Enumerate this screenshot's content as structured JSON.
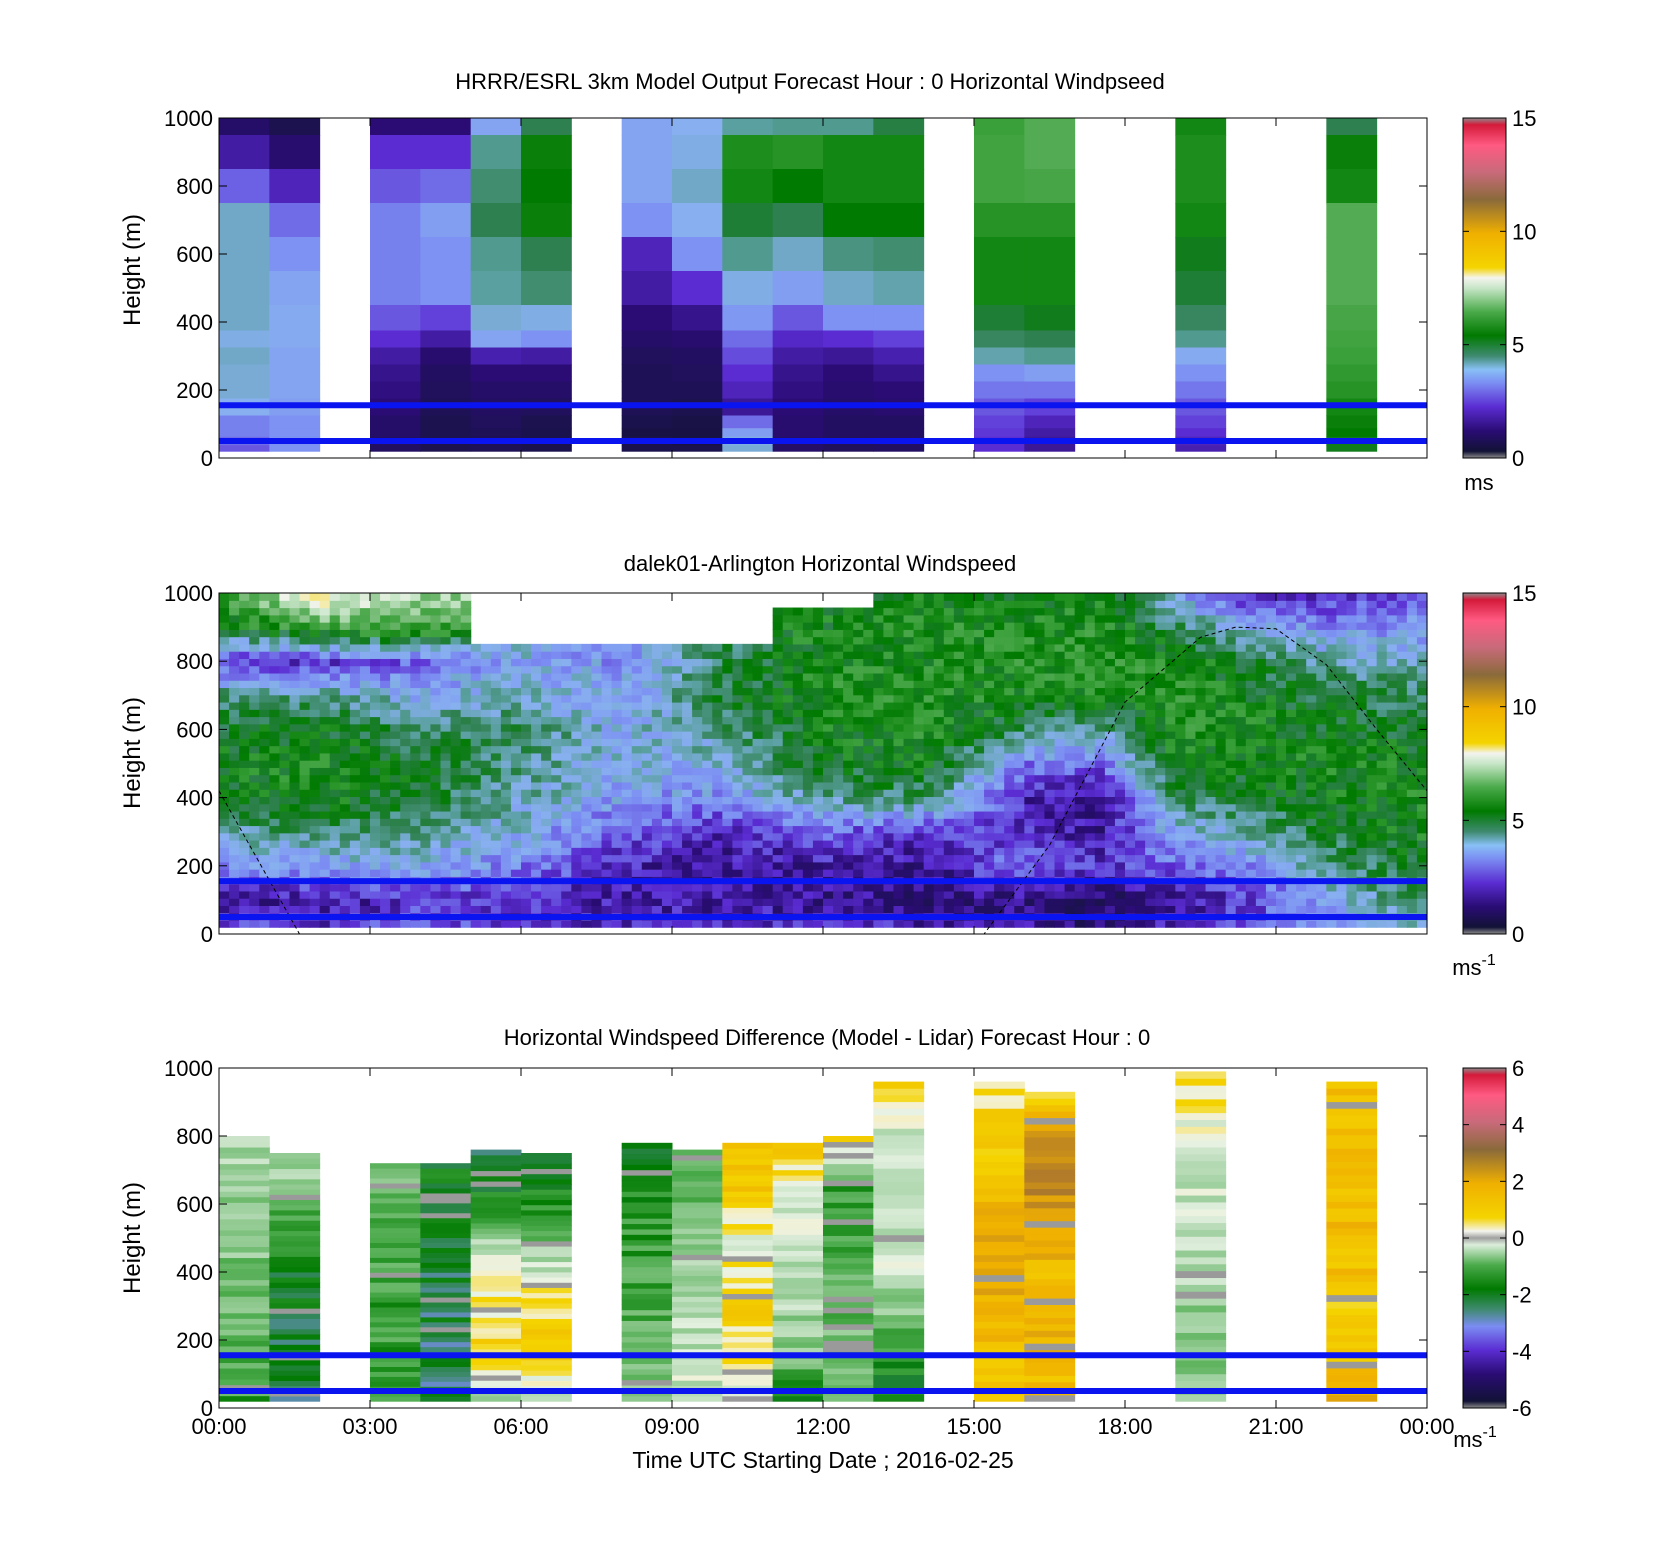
{
  "figure": {
    "xlabel": "Time UTC  Starting Date ; 2016-02-25",
    "x_ticks": [
      "00:00",
      "03:00",
      "06:00",
      "09:00",
      "12:00",
      "15:00",
      "18:00",
      "21:00",
      "00:00"
    ]
  },
  "chart_data": [
    {
      "type": "heatmap",
      "title": "HRRR/ESRL 3km Model Output   Forecast Hour : 0 Horizontal Windpseed",
      "ylabel": "Height (m)",
      "y_ticks": [
        "0",
        "200",
        "400",
        "600",
        "800",
        "1000"
      ],
      "xlim_hours": [
        0,
        24
      ],
      "ylim": [
        0,
        1000
      ],
      "colorbar": {
        "ticks": [
          "0",
          "5",
          "10",
          "15"
        ],
        "unit": "ms",
        "range": [
          0,
          15
        ]
      },
      "reference_lines_m": [
        50,
        155
      ],
      "levels_m": [
        1000,
        900,
        800,
        700,
        600,
        500,
        400,
        350,
        300,
        250,
        200,
        150,
        100,
        75,
        50,
        25
      ],
      "columns": [
        {
          "t": 0.5,
          "speeds": [
            1.0,
            1.6,
            2.5,
            3.8,
            3.8,
            3.8,
            3.8,
            3.6,
            3.8,
            3.7,
            3.7,
            3.5,
            2.8,
            2.8,
            2.6,
            2.4
          ]
        },
        {
          "t": 1.5,
          "speeds": [
            0.6,
            1.1,
            1.8,
            2.6,
            3.0,
            3.3,
            3.4,
            3.4,
            3.3,
            3.3,
            3.3,
            3.2,
            3.0,
            3.0,
            3.0,
            3.0
          ]
        },
        {
          "t": 2.5,
          "speeds": null
        },
        {
          "t": 3.5,
          "speeds": [
            1.2,
            2.0,
            2.4,
            2.8,
            2.8,
            2.8,
            2.4,
            2.0,
            1.6,
            1.4,
            1.3,
            1.2,
            1.0,
            1.0,
            0.9,
            0.9
          ]
        },
        {
          "t": 4.5,
          "speeds": [
            1.2,
            2.0,
            2.6,
            3.2,
            3.0,
            3.0,
            2.2,
            1.6,
            1.1,
            0.9,
            0.8,
            0.7,
            0.6,
            0.6,
            0.6,
            0.6
          ]
        },
        {
          "t": 5.5,
          "speeds": [
            3.3,
            4.2,
            4.4,
            4.6,
            4.2,
            4.1,
            3.7,
            3.3,
            1.7,
            1.2,
            1.0,
            0.9,
            0.8,
            0.7,
            0.7,
            0.7
          ]
        },
        {
          "t": 6.5,
          "speeds": [
            4.6,
            5.3,
            5.2,
            5.3,
            4.6,
            4.4,
            3.6,
            3.0,
            1.6,
            1.2,
            1.0,
            0.8,
            0.6,
            0.5,
            0.5,
            0.5
          ]
        },
        {
          "t": 7.5,
          "speeds": null
        },
        {
          "t": 8.5,
          "speeds": [
            3.3,
            3.3,
            3.3,
            3.0,
            1.8,
            1.6,
            1.2,
            1.0,
            0.8,
            0.7,
            0.7,
            0.7,
            0.5,
            0.3,
            0.5,
            0.5
          ]
        },
        {
          "t": 9.5,
          "speeds": [
            3.5,
            3.6,
            3.8,
            3.5,
            3.0,
            2.0,
            1.4,
            1.1,
            0.9,
            0.8,
            0.7,
            0.6,
            0.4,
            0.3,
            0.3,
            0.5
          ]
        },
        {
          "t": 10.5,
          "speeds": [
            4.1,
            5.5,
            5.4,
            4.8,
            4.2,
            3.6,
            3.1,
            2.6,
            2.3,
            2.0,
            1.8,
            1.5,
            2.6,
            3.2,
            3.6,
            3.7
          ]
        },
        {
          "t": 11.5,
          "speeds": [
            4.2,
            5.6,
            5.2,
            4.6,
            3.8,
            3.2,
            2.4,
            1.9,
            1.6,
            1.4,
            1.3,
            1.2,
            1.1,
            1.1,
            1.0,
            1.0
          ]
        },
        {
          "t": 12.5,
          "speeds": [
            4.2,
            5.4,
            5.4,
            5.2,
            4.3,
            3.8,
            3.0,
            2.0,
            1.5,
            1.2,
            1.1,
            1.0,
            0.9,
            0.9,
            0.8,
            0.8
          ]
        },
        {
          "t": 13.5,
          "speeds": [
            4.7,
            5.4,
            5.4,
            5.2,
            4.4,
            4.0,
            3.0,
            2.2,
            1.7,
            1.4,
            1.2,
            1.1,
            0.9,
            0.9,
            0.9,
            0.9
          ]
        },
        {
          "t": 14.5,
          "speeds": null
        },
        {
          "t": 15.5,
          "speeds": [
            5.8,
            5.9,
            5.9,
            5.6,
            5.4,
            5.4,
            4.8,
            4.5,
            4.0,
            3.0,
            2.7,
            2.4,
            2.2,
            2.1,
            2.0,
            2.0
          ]
        },
        {
          "t": 16.5,
          "speeds": [
            6.2,
            6.2,
            6.0,
            5.6,
            5.4,
            5.4,
            5.0,
            4.6,
            4.2,
            3.2,
            2.7,
            2.2,
            1.8,
            1.6,
            1.5,
            1.5
          ]
        },
        {
          "t": 17.5,
          "speeds": null
        },
        {
          "t": 18.5,
          "speeds": null
        },
        {
          "t": 19.5,
          "speeds": [
            5.4,
            5.5,
            5.5,
            5.4,
            5.0,
            4.8,
            4.5,
            4.2,
            3.4,
            3.0,
            2.7,
            2.4,
            2.2,
            2.0,
            1.8,
            1.7
          ]
        },
        {
          "t": 20.5,
          "speeds": null
        },
        {
          "t": 21.5,
          "speeds": null
        },
        {
          "t": 22.5,
          "speeds": [
            4.6,
            5.3,
            5.4,
            6.2,
            6.2,
            6.2,
            6.0,
            5.9,
            5.8,
            5.7,
            5.6,
            5.4,
            5.3,
            5.2,
            5.0,
            5.0
          ]
        },
        {
          "t": 23.5,
          "speeds": null
        }
      ]
    },
    {
      "type": "heatmap",
      "title": "dalek01-Arlington  Horizontal Windspeed",
      "ylabel": "Height (m)",
      "y_ticks": [
        "0",
        "200",
        "400",
        "600",
        "800",
        "1000"
      ],
      "xlim_hours": [
        0,
        24
      ],
      "ylim": [
        0,
        1000
      ],
      "colorbar": {
        "ticks": [
          "0",
          "5",
          "10",
          "15"
        ],
        "unit": "ms",
        "unit_sup": "-1",
        "range": [
          0,
          15
        ]
      },
      "reference_lines_m": [
        50,
        155
      ],
      "overlay_curve": "dashed black line (top of boundary layer)",
      "field_keyframes": {
        "levels_m": [
          20,
          100,
          200,
          300,
          400,
          500,
          600,
          700,
          800,
          900,
          1000
        ],
        "columns": [
          {
            "t": 0.0,
            "speeds": [
              2.5,
              1.5,
              3.0,
              4.0,
              5.0,
              5.2,
              5.0,
              4.5,
              2.0,
              5.0,
              6.0
            ]
          },
          {
            "t": 2.0,
            "speeds": [
              2.0,
              1.6,
              3.2,
              4.5,
              5.3,
              5.4,
              5.1,
              4.2,
              2.0,
              6.0,
              8.0
            ]
          },
          {
            "t": 4.0,
            "speeds": [
              2.5,
              2.0,
              3.5,
              4.2,
              4.8,
              5.0,
              4.5,
              3.5,
              2.5,
              6.0,
              7.0
            ]
          },
          {
            "t": 6.0,
            "speeds": [
              2.0,
              2.0,
              2.8,
              3.5,
              4.0,
              4.2,
              4.5,
              3.8,
              3.5,
              null,
              null
            ]
          },
          {
            "t": 8.0,
            "speeds": [
              2.0,
              1.6,
              1.8,
              2.4,
              3.2,
              3.5,
              3.5,
              3.2,
              3.0,
              null,
              null
            ]
          },
          {
            "t": 10.0,
            "speeds": [
              2.0,
              1.5,
              1.5,
              1.8,
              3.0,
              3.6,
              4.2,
              4.8,
              4.5,
              null,
              null
            ]
          },
          {
            "t": 12.0,
            "speeds": [
              2.0,
              1.4,
              1.6,
              2.5,
              4.2,
              5.0,
              5.2,
              5.5,
              5.4,
              5.2,
              null
            ]
          },
          {
            "t": 14.0,
            "speeds": [
              1.8,
              1.2,
              1.4,
              2.0,
              4.5,
              5.3,
              5.5,
              5.5,
              5.4,
              5.5,
              5.2
            ]
          },
          {
            "t": 16.0,
            "speeds": [
              1.5,
              1.2,
              2.8,
              2.0,
              1.8,
              2.8,
              4.5,
              5.4,
              5.5,
              5.4,
              5.2
            ]
          },
          {
            "t": 17.5,
            "speeds": [
              1.0,
              0.8,
              2.0,
              1.5,
              1.4,
              2.5,
              4.0,
              5.4,
              5.6,
              5.6,
              5.3
            ]
          },
          {
            "t": 19.0,
            "speeds": [
              2.0,
              1.5,
              2.5,
              3.5,
              4.5,
              5.2,
              5.5,
              5.6,
              5.5,
              4.5,
              3.5
            ]
          },
          {
            "t": 20.5,
            "speeds": [
              2.5,
              2.0,
              3.0,
              4.0,
              4.8,
              5.3,
              5.4,
              5.2,
              4.8,
              3.5,
              1.5
            ]
          },
          {
            "t": 22.0,
            "speeds": [
              3.0,
              3.5,
              4.2,
              4.8,
              5.2,
              5.3,
              5.0,
              4.8,
              4.0,
              3.0,
              2.0
            ]
          },
          {
            "t": 24.0,
            "speeds": [
              4.0,
              4.5,
              5.0,
              5.3,
              5.4,
              5.2,
              5.0,
              4.5,
              3.8,
              3.0,
              2.5
            ]
          }
        ]
      }
    },
    {
      "type": "heatmap",
      "title": "Horizontal Windspeed Difference (Model - Lidar) Forecast Hour : 0",
      "ylabel": "Height (m)",
      "xlabel": "Time UTC  Starting Date ; 2016-02-25",
      "y_ticks": [
        "0",
        "200",
        "400",
        "600",
        "800",
        "1000"
      ],
      "xlim_hours": [
        0,
        24
      ],
      "ylim": [
        0,
        1000
      ],
      "colorbar": {
        "ticks": [
          "-6",
          "-4",
          "-2",
          "0",
          "2",
          "4",
          "6"
        ],
        "unit": "ms",
        "unit_sup": "-1",
        "range": [
          -6,
          6
        ]
      },
      "reference_lines_m": [
        50,
        155
      ],
      "columns": [
        {
          "t": 0.5,
          "top_m": 800,
          "diff": [
            -2.0,
            -1.6,
            -1.5,
            -1.2,
            -1.0,
            -0.8
          ]
        },
        {
          "t": 1.5,
          "top_m": 750,
          "diff": [
            -3.2,
            -3.0,
            -2.8,
            -2.4,
            -1.6,
            -0.6
          ]
        },
        {
          "t": 2.5,
          "top_m": null,
          "diff": null
        },
        {
          "t": 3.5,
          "top_m": 720,
          "diff": [
            -2.2,
            -2.0,
            -2.0,
            -1.8,
            -1.6,
            -1.2
          ]
        },
        {
          "t": 4.5,
          "top_m": 720,
          "diff": [
            -3.0,
            -3.0,
            -2.9,
            -2.8,
            -2.6,
            -2.6
          ]
        },
        {
          "t": 5.5,
          "top_m": 760,
          "diff": [
            -1.0,
            0.5,
            0.2,
            -0.6,
            -2.4,
            -2.8
          ]
        },
        {
          "t": 6.5,
          "top_m": 750,
          "diff": [
            -0.6,
            1.0,
            0.4,
            -1.0,
            -2.4,
            -2.8
          ]
        },
        {
          "t": 7.5,
          "top_m": null,
          "diff": null
        },
        {
          "t": 8.5,
          "top_m": 780,
          "diff": [
            -1.2,
            -1.5,
            -1.8,
            -2.0,
            -2.2,
            -2.5
          ]
        },
        {
          "t": 9.5,
          "top_m": 760,
          "diff": [
            -0.4,
            -0.6,
            -0.8,
            -1.0,
            -1.4,
            -2.0
          ]
        },
        {
          "t": 10.5,
          "top_m": 780,
          "diff": [
            -0.6,
            0.4,
            0.6,
            -0.2,
            0.8,
            1.2
          ]
        },
        {
          "t": 11.5,
          "top_m": 780,
          "diff": [
            -2.5,
            -1.2,
            -0.8,
            -0.6,
            -0.2,
            0.8
          ]
        },
        {
          "t": 12.5,
          "top_m": 800,
          "diff": [
            -1.2,
            -1.4,
            -1.6,
            -1.8,
            -2.0,
            1.0
          ]
        },
        {
          "t": 13.5,
          "top_m": 960,
          "diff": [
            -2.8,
            -1.8,
            -0.6,
            -0.4,
            -0.6,
            0.4
          ]
        },
        {
          "t": 14.5,
          "top_m": null,
          "diff": null
        },
        {
          "t": 15.5,
          "top_m": 960,
          "diff": [
            0.8,
            1.2,
            1.8,
            1.4,
            0.8,
            0.4
          ]
        },
        {
          "t": 16.5,
          "top_m": 930,
          "diff": [
            1.2,
            1.4,
            1.0,
            2.2,
            2.4,
            0.6
          ]
        },
        {
          "t": 17.5,
          "top_m": null,
          "diff": null
        },
        {
          "t": 18.5,
          "top_m": null,
          "diff": null
        },
        {
          "t": 19.5,
          "top_m": 990,
          "diff": [
            -1.0,
            -1.2,
            -0.8,
            -0.6,
            -0.4,
            0.6
          ]
        },
        {
          "t": 20.5,
          "top_m": null,
          "diff": null
        },
        {
          "t": 21.5,
          "top_m": null,
          "diff": null
        },
        {
          "t": 22.5,
          "top_m": 960,
          "diff": [
            1.6,
            0.6,
            1.2,
            1.2,
            1.0,
            1.0
          ]
        },
        {
          "t": 23.5,
          "top_m": null,
          "diff": null
        }
      ]
    }
  ]
}
